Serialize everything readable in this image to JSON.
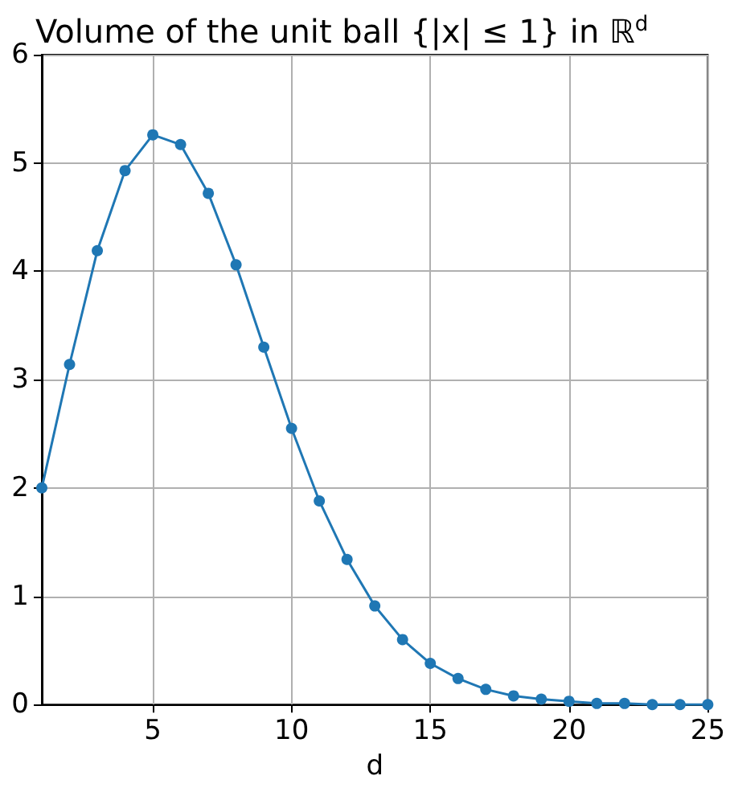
{
  "chart_data": {
    "type": "line",
    "title": "Volume of the unit ball {|x| ≤ 1} in ℝ$^{d}$",
    "xlabel": "d",
    "x": [
      1,
      2,
      3,
      4,
      5,
      6,
      7,
      8,
      9,
      10,
      11,
      12,
      13,
      14,
      15,
      16,
      17,
      18,
      19,
      20,
      21,
      22,
      23,
      24,
      25
    ],
    "series": [
      {
        "color": "#1f77b4",
        "values": [
          2,
          3.14,
          4.19,
          4.93,
          5.26,
          5.17,
          4.72,
          4.06,
          3.3,
          2.55,
          1.88,
          1.34,
          0.91,
          0.6,
          0.38,
          0.24,
          0.14,
          0.08,
          0.05,
          0.03,
          0.01,
          0.01,
          0,
          0,
          0
        ]
      }
    ],
    "xlim": [
      1,
      25
    ],
    "xticks": [
      5,
      10,
      15,
      20,
      25
    ],
    "ylim": [
      0,
      6
    ],
    "yticks": [
      0,
      1,
      2,
      3,
      4,
      5,
      6
    ],
    "grid": true,
    "marker": "circle",
    "line_style": "solid"
  }
}
